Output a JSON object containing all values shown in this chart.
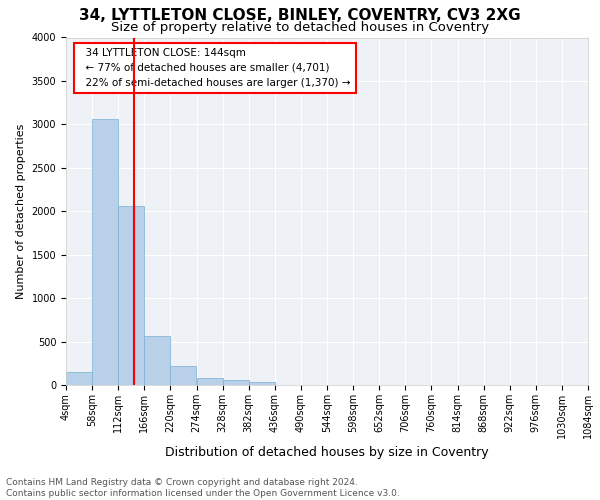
{
  "title": "34, LYTTLETON CLOSE, BINLEY, COVENTRY, CV3 2XG",
  "subtitle": "Size of property relative to detached houses in Coventry",
  "xlabel": "Distribution of detached houses by size in Coventry",
  "ylabel": "Number of detached properties",
  "bar_color": "#b8d0e8",
  "bar_edge_color": "#7aafd4",
  "background_color": "#eef2f7",
  "grid_color": "#ffffff",
  "property_line_x": 144,
  "property_line_color": "red",
  "bin_width": 54,
  "bin_starts": [
    4,
    58,
    112,
    166,
    220,
    274,
    328,
    382,
    436,
    490,
    544,
    598,
    652,
    706,
    760,
    814,
    868,
    922,
    976,
    1030
  ],
  "bin_values": [
    150,
    3060,
    2060,
    560,
    220,
    80,
    60,
    40,
    0,
    0,
    0,
    0,
    0,
    0,
    0,
    0,
    0,
    0,
    0,
    0
  ],
  "tick_labels": [
    "4sqm",
    "58sqm",
    "112sqm",
    "166sqm",
    "220sqm",
    "274sqm",
    "328sqm",
    "382sqm",
    "436sqm",
    "490sqm",
    "544sqm",
    "598sqm",
    "652sqm",
    "706sqm",
    "760sqm",
    "814sqm",
    "868sqm",
    "922sqm",
    "976sqm",
    "1030sqm",
    "1084sqm"
  ],
  "ylim": [
    0,
    4000
  ],
  "yticks": [
    0,
    500,
    1000,
    1500,
    2000,
    2500,
    3000,
    3500,
    4000
  ],
  "annotation_box_text": "  34 LYTTLETON CLOSE: 144sqm\n  ← 77% of detached houses are smaller (4,701)\n  22% of semi-detached houses are larger (1,370) →",
  "annotation_box_color": "red",
  "footer_text": "Contains HM Land Registry data © Crown copyright and database right 2024.\nContains public sector information licensed under the Open Government Licence v3.0.",
  "title_fontsize": 11,
  "subtitle_fontsize": 9.5,
  "xlabel_fontsize": 9,
  "ylabel_fontsize": 8,
  "tick_fontsize": 7,
  "annotation_fontsize": 7.5,
  "footer_fontsize": 6.5
}
